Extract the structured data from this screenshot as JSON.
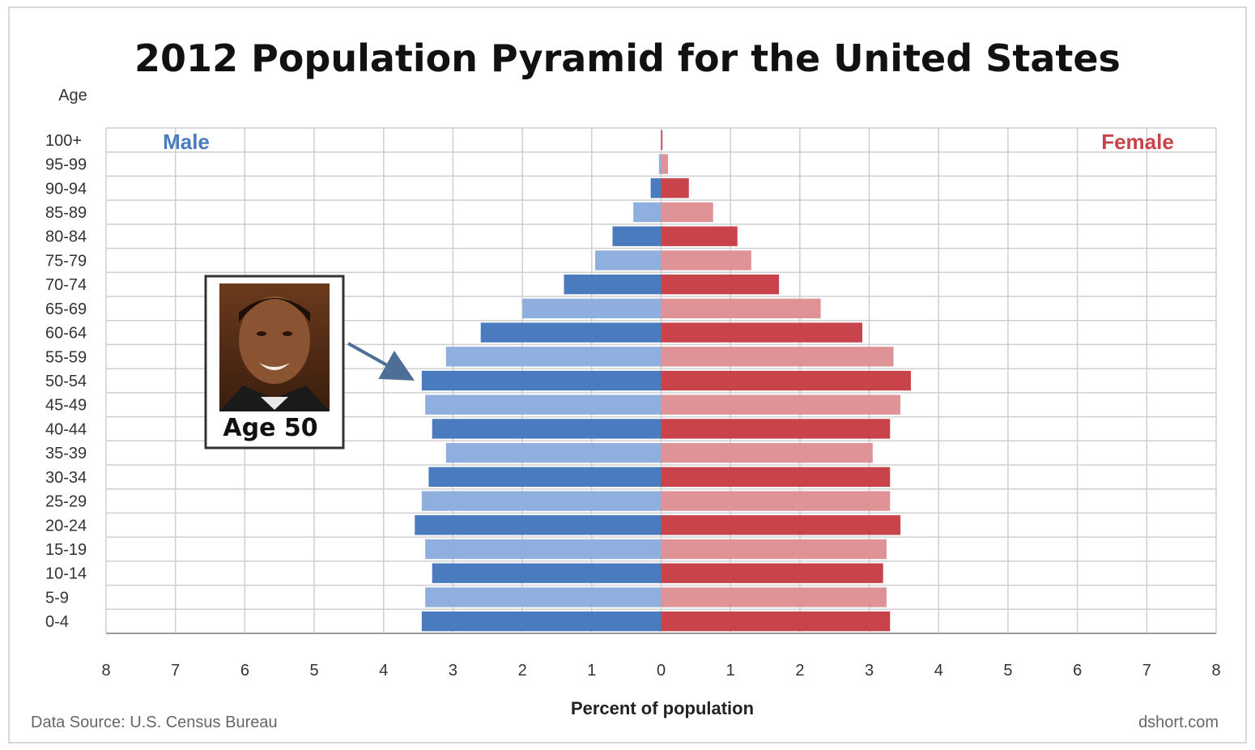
{
  "chart_data": {
    "type": "bar",
    "orientation": "horizontal",
    "title": "2012 Population Pyramid for the United States",
    "ylabel": "Age",
    "xlabel": "Percent of population",
    "xlim": [
      -8,
      8
    ],
    "x_ticks": [
      "8",
      "7",
      "6",
      "5",
      "4",
      "3",
      "2",
      "1",
      "0",
      "1",
      "2",
      "3",
      "4",
      "5",
      "6",
      "7",
      "8"
    ],
    "grid": true,
    "categories": [
      "0-4",
      "5-9",
      "10-14",
      "15-19",
      "20-24",
      "25-29",
      "30-34",
      "35-39",
      "40-44",
      "45-49",
      "50-54",
      "55-59",
      "60-64",
      "65-69",
      "70-74",
      "75-79",
      "80-84",
      "85-89",
      "90-94",
      "95-99",
      "100+"
    ],
    "series": [
      {
        "name": "Male",
        "color": "#4a7bbf",
        "alt_color": "#8fb0de",
        "values": [
          3.45,
          3.4,
          3.3,
          3.4,
          3.55,
          3.45,
          3.35,
          3.1,
          3.3,
          3.4,
          3.45,
          3.1,
          2.6,
          2.0,
          1.4,
          0.95,
          0.7,
          0.4,
          0.15,
          0.03,
          0.0
        ]
      },
      {
        "name": "Female",
        "color": "#c9444a",
        "alt_color": "#e09396",
        "values": [
          3.3,
          3.25,
          3.2,
          3.25,
          3.45,
          3.3,
          3.3,
          3.05,
          3.3,
          3.45,
          3.6,
          3.35,
          2.9,
          2.3,
          1.7,
          1.3,
          1.1,
          0.75,
          0.4,
          0.1,
          0.02
        ]
      }
    ],
    "legend_positions": {
      "Male": "top-left",
      "Female": "top-right"
    },
    "annotation": {
      "label": "Age 50",
      "target_category": "50-54"
    }
  },
  "footer": {
    "source": "Data Source: U.S. Census Bureau",
    "credit": "dshort.com"
  }
}
